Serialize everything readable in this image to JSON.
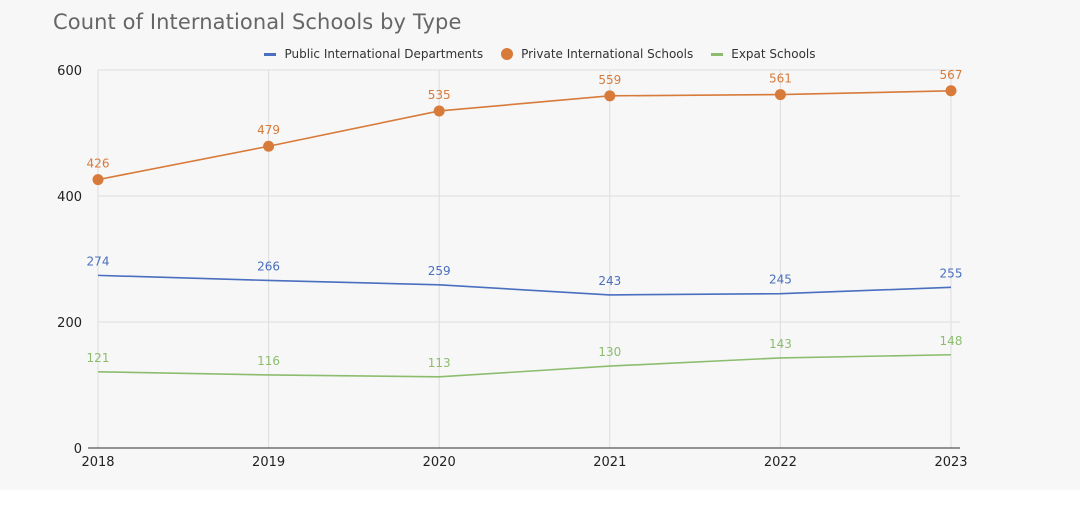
{
  "title": "Count of International Schools by Type",
  "colors": {
    "public": "#4a6fbf",
    "private": "#d87a3a",
    "expat": "#8cbd6e",
    "grid": "#dddddd",
    "axis": "#555555"
  },
  "chart_data": {
    "type": "line",
    "title": "Count of International Schools by Type",
    "xlabel": "",
    "ylabel": "",
    "x": [
      "2018",
      "2019",
      "2020",
      "2021",
      "2022",
      "2023"
    ],
    "ylim": [
      0,
      600
    ],
    "yticks": [
      "0",
      "200",
      "400",
      "600"
    ],
    "grid": true,
    "legend_position": "top-center",
    "series": [
      {
        "name": "Public International Departments",
        "values": [
          274,
          266,
          259,
          243,
          245,
          255
        ],
        "marker": "none"
      },
      {
        "name": "Private International Schools",
        "values": [
          426,
          479,
          535,
          559,
          561,
          567
        ],
        "marker": "circle"
      },
      {
        "name": "Expat Schools",
        "values": [
          121,
          116,
          113,
          130,
          143,
          148
        ],
        "marker": "none"
      }
    ]
  }
}
